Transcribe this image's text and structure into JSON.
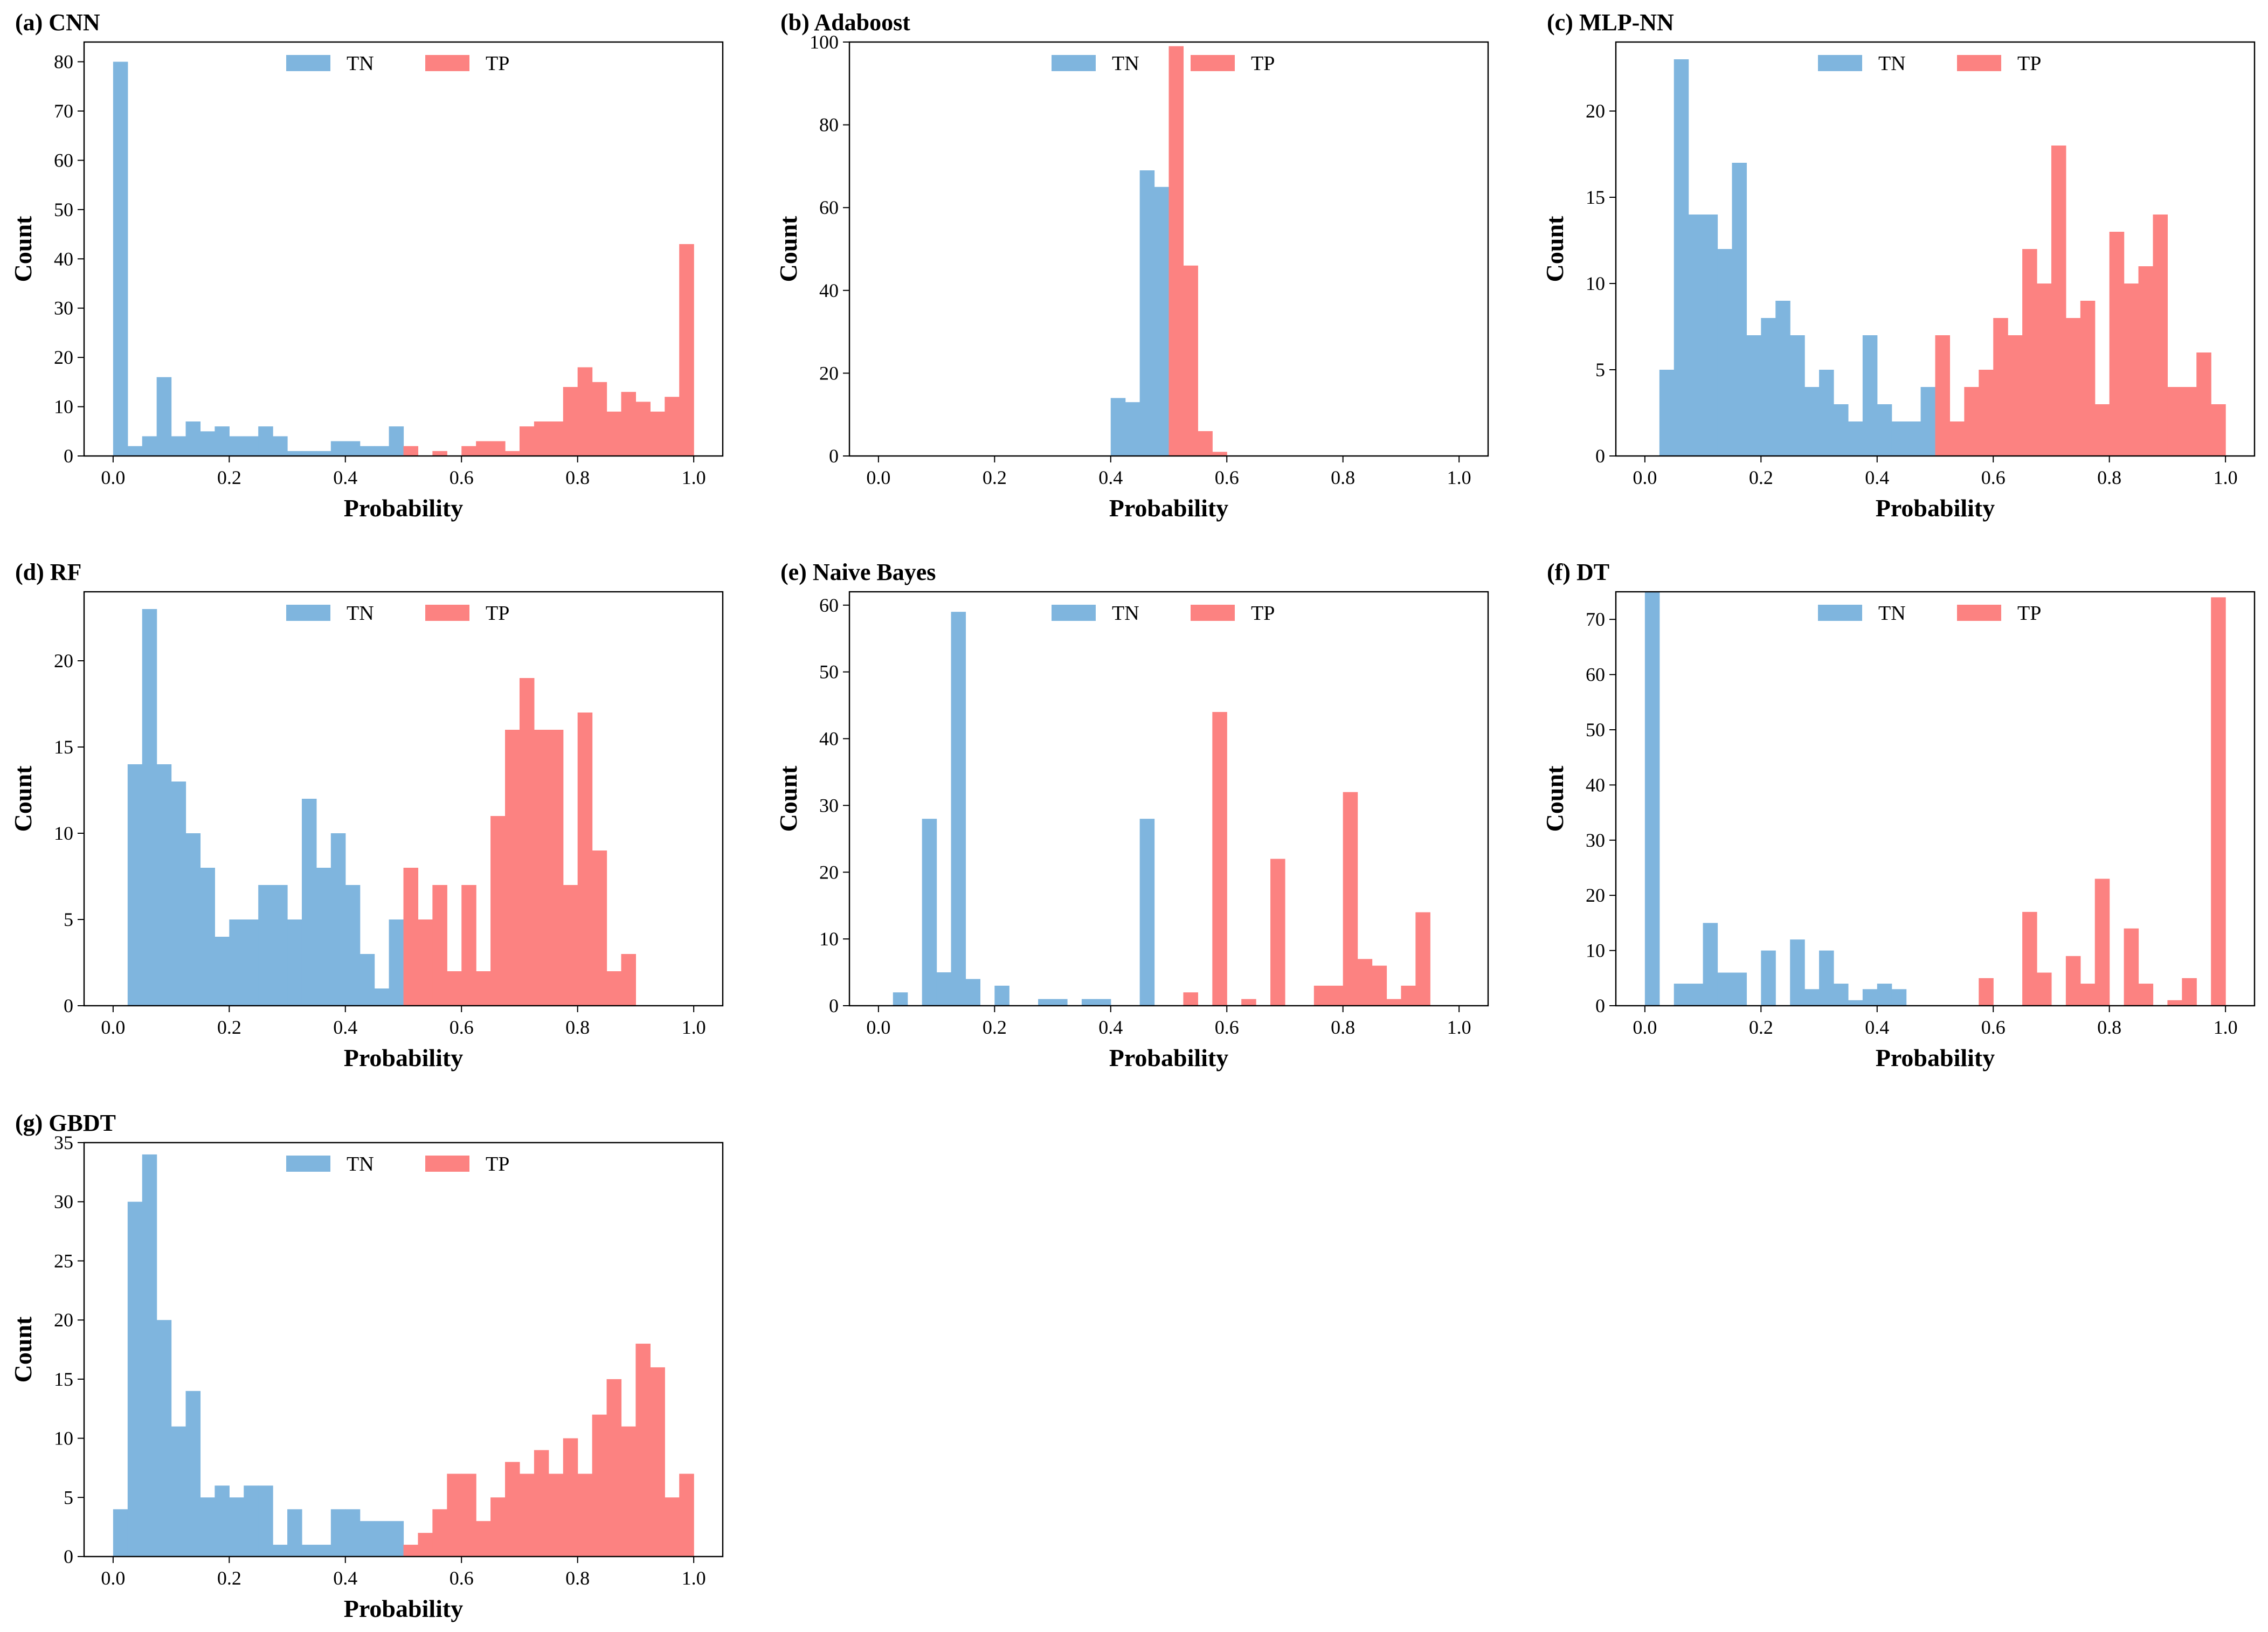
{
  "colors": {
    "TN": "#7fb5de",
    "TP": "#fc8281"
  },
  "chart_data": [
    {
      "type": "bar",
      "title": "(a) CNN",
      "xlabel": "Probability",
      "ylabel": "Count",
      "xlim": [
        0,
        1
      ],
      "ylim": [
        0,
        84
      ],
      "xticks": [
        "0.0",
        "0.2",
        "0.4",
        "0.6",
        "0.8",
        "1.0"
      ],
      "yticks": [
        0,
        10,
        20,
        30,
        40,
        50,
        60,
        70,
        80
      ],
      "legend": "top-center",
      "bin_width": 0.025,
      "series": [
        {
          "name": "TN",
          "bin_starts": [
            0.0,
            0.025,
            0.05,
            0.075,
            0.1,
            0.125,
            0.15,
            0.175,
            0.2,
            0.225,
            0.25,
            0.275,
            0.3,
            0.325,
            0.35,
            0.375,
            0.4,
            0.425,
            0.45,
            0.475
          ],
          "values": [
            80,
            2,
            4,
            16,
            4,
            7,
            5,
            6,
            4,
            4,
            6,
            4,
            1,
            1,
            1,
            3,
            3,
            2,
            2,
            6
          ]
        },
        {
          "name": "TP",
          "bin_starts": [
            0.5,
            0.525,
            0.55,
            0.575,
            0.6,
            0.625,
            0.65,
            0.675,
            0.7,
            0.725,
            0.75,
            0.775,
            0.8,
            0.825,
            0.85,
            0.875,
            0.9,
            0.925,
            0.95,
            0.975
          ],
          "values": [
            2,
            0,
            1,
            0,
            2,
            3,
            3,
            1,
            6,
            7,
            7,
            14,
            18,
            15,
            9,
            13,
            11,
            9,
            12,
            43
          ]
        }
      ]
    },
    {
      "type": "bar",
      "title": "(b) Adaboost",
      "xlabel": "Probability",
      "ylabel": "Count",
      "xlim": [
        0,
        1
      ],
      "ylim": [
        0,
        100
      ],
      "xticks": [
        "0.0",
        "0.2",
        "0.4",
        "0.6",
        "0.8",
        "1.0"
      ],
      "yticks": [
        0,
        20,
        40,
        60,
        80,
        100
      ],
      "legend": "top-center",
      "bin_width": 0.025,
      "series": [
        {
          "name": "TN",
          "bin_starts": [
            0.4,
            0.425,
            0.45,
            0.475
          ],
          "values": [
            14,
            13,
            69,
            65
          ]
        },
        {
          "name": "TP",
          "bin_starts": [
            0.5,
            0.525,
            0.55,
            0.575
          ],
          "values": [
            99,
            46,
            6,
            1
          ]
        }
      ]
    },
    {
      "type": "bar",
      "title": "(c) MLP-NN",
      "xlabel": "Probability",
      "ylabel": "Count",
      "xlim": [
        0,
        1
      ],
      "ylim": [
        0,
        24
      ],
      "xticks": [
        "0.0",
        "0.2",
        "0.4",
        "0.6",
        "0.8",
        "1.0"
      ],
      "yticks": [
        0,
        5,
        10,
        15,
        20
      ],
      "legend": "top-center",
      "bin_width": 0.025,
      "series": [
        {
          "name": "TN",
          "bin_starts": [
            0.025,
            0.05,
            0.075,
            0.1,
            0.125,
            0.15,
            0.175,
            0.2,
            0.225,
            0.25,
            0.275,
            0.3,
            0.325,
            0.35,
            0.375,
            0.4,
            0.425,
            0.45,
            0.475
          ],
          "values": [
            5,
            23,
            14,
            14,
            12,
            17,
            7,
            8,
            9,
            7,
            4,
            5,
            3,
            2,
            7,
            3,
            2,
            2,
            4
          ]
        },
        {
          "name": "TP",
          "bin_starts": [
            0.5,
            0.525,
            0.55,
            0.575,
            0.6,
            0.625,
            0.65,
            0.675,
            0.7,
            0.725,
            0.75,
            0.775,
            0.8,
            0.825,
            0.85,
            0.875,
            0.9,
            0.925,
            0.95,
            0.975
          ],
          "values": [
            7,
            2,
            4,
            5,
            8,
            7,
            12,
            10,
            18,
            8,
            9,
            3,
            13,
            10,
            11,
            14,
            4,
            4,
            6,
            3
          ]
        }
      ]
    },
    {
      "type": "bar",
      "title": "(d) RF",
      "xlabel": "Probability",
      "ylabel": "Count",
      "xlim": [
        0,
        1
      ],
      "ylim": [
        0,
        24
      ],
      "xticks": [
        "0.0",
        "0.2",
        "0.4",
        "0.6",
        "0.8",
        "1.0"
      ],
      "yticks": [
        0,
        5,
        10,
        15,
        20
      ],
      "legend": "top-center",
      "bin_width": 0.025,
      "series": [
        {
          "name": "TN",
          "bin_starts": [
            0.025,
            0.05,
            0.075,
            0.1,
            0.125,
            0.15,
            0.175,
            0.2,
            0.225,
            0.25,
            0.275,
            0.3,
            0.325,
            0.35,
            0.375,
            0.4,
            0.425,
            0.45,
            0.475
          ],
          "values": [
            14,
            23,
            14,
            13,
            10,
            8,
            4,
            5,
            5,
            7,
            7,
            5,
            12,
            8,
            10,
            7,
            3,
            1,
            5
          ]
        },
        {
          "name": "TP",
          "bin_starts": [
            0.5,
            0.525,
            0.55,
            0.575,
            0.6,
            0.625,
            0.65,
            0.675,
            0.7,
            0.725,
            0.75,
            0.775,
            0.8,
            0.825,
            0.85,
            0.875,
            0.9
          ],
          "values": [
            8,
            5,
            7,
            2,
            7,
            2,
            11,
            16,
            19,
            16,
            16,
            7,
            17,
            9,
            2,
            3,
            0
          ]
        }
      ]
    },
    {
      "type": "bar",
      "title": "(e) Naive Bayes",
      "xlabel": "Probability",
      "ylabel": "Count",
      "xlim": [
        0,
        1
      ],
      "ylim": [
        0,
        62
      ],
      "xticks": [
        "0.0",
        "0.2",
        "0.4",
        "0.6",
        "0.8",
        "1.0"
      ],
      "yticks": [
        0,
        10,
        20,
        30,
        40,
        50,
        60
      ],
      "legend": "top-center",
      "bin_width": 0.025,
      "series": [
        {
          "name": "TN",
          "bin_starts": [
            0.025,
            0.05,
            0.075,
            0.1,
            0.125,
            0.15,
            0.175,
            0.2,
            0.225,
            0.25,
            0.275,
            0.3,
            0.325,
            0.35,
            0.375,
            0.4,
            0.425,
            0.45
          ],
          "values": [
            2,
            0,
            28,
            5,
            59,
            4,
            0,
            3,
            0,
            0,
            1,
            1,
            0,
            1,
            1,
            0,
            0,
            28
          ]
        },
        {
          "name": "TP",
          "bin_starts": [
            0.5,
            0.525,
            0.55,
            0.575,
            0.6,
            0.625,
            0.65,
            0.675,
            0.7,
            0.725,
            0.75,
            0.775,
            0.8,
            0.825,
            0.85,
            0.875,
            0.9,
            0.925
          ],
          "values": [
            0,
            2,
            0,
            44,
            0,
            1,
            0,
            22,
            0,
            0,
            3,
            3,
            32,
            7,
            6,
            1,
            3,
            14
          ]
        }
      ]
    },
    {
      "type": "bar",
      "title": "(f) DT",
      "xlabel": "Probability",
      "ylabel": "Count",
      "xlim": [
        0,
        1
      ],
      "ylim": [
        0,
        75
      ],
      "xticks": [
        "0.0",
        "0.2",
        "0.4",
        "0.6",
        "0.8",
        "1.0"
      ],
      "yticks": [
        0,
        10,
        20,
        30,
        40,
        50,
        60,
        70
      ],
      "legend": "top-center",
      "bin_width": 0.025,
      "series": [
        {
          "name": "TN",
          "bin_starts": [
            0.0,
            0.025,
            0.05,
            0.075,
            0.1,
            0.125,
            0.15,
            0.175,
            0.2,
            0.225,
            0.25,
            0.275,
            0.3,
            0.325,
            0.35,
            0.375,
            0.4,
            0.425
          ],
          "values": [
            75,
            0,
            4,
            4,
            15,
            6,
            6,
            0,
            10,
            0,
            12,
            3,
            10,
            4,
            1,
            3,
            4,
            3
          ]
        },
        {
          "name": "TP",
          "bin_starts": [
            0.5,
            0.525,
            0.55,
            0.575,
            0.6,
            0.625,
            0.65,
            0.675,
            0.7,
            0.725,
            0.75,
            0.775,
            0.8,
            0.825,
            0.85,
            0.875,
            0.9,
            0.925,
            0.95,
            0.975
          ],
          "values": [
            0,
            0,
            0,
            5,
            0,
            0,
            17,
            6,
            0,
            9,
            4,
            23,
            0,
            14,
            4,
            0,
            1,
            5,
            0,
            74
          ]
        }
      ]
    },
    {
      "type": "bar",
      "title": "(g) GBDT",
      "xlabel": "Probability",
      "ylabel": "Count",
      "xlim": [
        0,
        1
      ],
      "ylim": [
        0,
        35
      ],
      "xticks": [
        "0.0",
        "0.2",
        "0.4",
        "0.6",
        "0.8",
        "1.0"
      ],
      "yticks": [
        0,
        5,
        10,
        15,
        20,
        25,
        30,
        35
      ],
      "legend": "top-center",
      "bin_width": 0.025,
      "series": [
        {
          "name": "TN",
          "bin_starts": [
            0.0,
            0.025,
            0.05,
            0.075,
            0.1,
            0.125,
            0.15,
            0.175,
            0.2,
            0.225,
            0.25,
            0.275,
            0.3,
            0.325,
            0.35,
            0.375,
            0.4,
            0.425,
            0.45,
            0.475
          ],
          "values": [
            4,
            30,
            34,
            20,
            11,
            14,
            5,
            6,
            5,
            6,
            6,
            1,
            4,
            1,
            1,
            4,
            4,
            3,
            3,
            3
          ]
        },
        {
          "name": "TP",
          "bin_starts": [
            0.5,
            0.525,
            0.55,
            0.575,
            0.6,
            0.625,
            0.65,
            0.675,
            0.7,
            0.725,
            0.75,
            0.775,
            0.8,
            0.825,
            0.85,
            0.875,
            0.9,
            0.925,
            0.95,
            0.975
          ],
          "values": [
            1,
            2,
            4,
            7,
            7,
            3,
            5,
            8,
            7,
            9,
            7,
            10,
            7,
            12,
            15,
            11,
            18,
            16,
            5,
            7
          ]
        }
      ]
    }
  ]
}
